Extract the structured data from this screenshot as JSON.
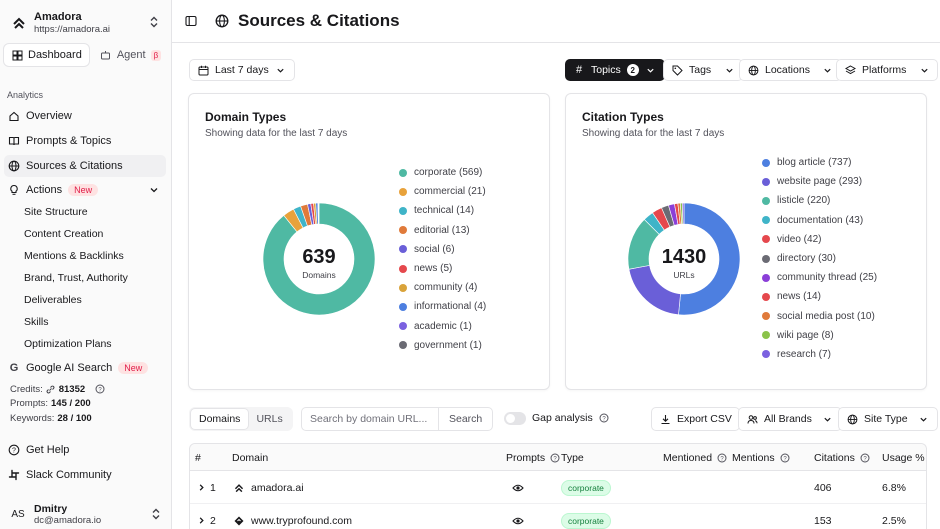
{
  "org": {
    "name": "Amadora",
    "url": "https://amadora.ai"
  },
  "mode_tabs": [
    {
      "label": "Dashboard",
      "active": true
    },
    {
      "label": "Agent",
      "badge": "β"
    }
  ],
  "nav": {
    "section_label": "Analytics",
    "items": [
      {
        "label": "Overview",
        "icon": "home-icon"
      },
      {
        "label": "Prompts & Topics",
        "icon": "book-icon"
      },
      {
        "label": "Sources & Citations",
        "icon": "globe-icon",
        "active": true
      },
      {
        "label": "Actions",
        "icon": "lightbulb-icon",
        "badge": "New"
      }
    ],
    "actions_sub": [
      "Site Structure",
      "Content Creation",
      "Mentions & Backlinks",
      "Brand, Trust, Authority",
      "Deliverables",
      "Skills",
      "Optimization Plans"
    ],
    "google": {
      "label": "Google AI Search",
      "badge": "New"
    }
  },
  "stats": {
    "credits_label": "Credits:",
    "credits_value": "81352",
    "prompts_label": "Prompts:",
    "prompts_value": "145 / 200",
    "keywords_label": "Keywords:",
    "keywords_value": "28 / 100"
  },
  "footer_links": [
    "Get Help",
    "Slack Community"
  ],
  "user": {
    "initials": "AS",
    "name": "Dmitry",
    "email": "dc@amadora.io"
  },
  "header": {
    "title": "Sources & Citations"
  },
  "filters": {
    "date": "Last 7 days",
    "topics": "Topics",
    "topics_count": "2",
    "tags": "Tags",
    "locations": "Locations",
    "platforms": "Platforms"
  },
  "domain_types": {
    "title": "Domain Types",
    "subtitle": "Showing data for the last 7 days",
    "total": "639",
    "total_label": "Domains",
    "items": [
      {
        "label": "corporate (569)",
        "value": 569,
        "color": "#4fb9a3"
      },
      {
        "label": "commercial (21)",
        "value": 21,
        "color": "#e8a23b"
      },
      {
        "label": "technical (14)",
        "value": 14,
        "color": "#3fb4c8"
      },
      {
        "label": "editorial (13)",
        "value": 13,
        "color": "#e07a3a"
      },
      {
        "label": "social (6)",
        "value": 6,
        "color": "#6a5fd8"
      },
      {
        "label": "news (5)",
        "value": 5,
        "color": "#e5484d"
      },
      {
        "label": "community (4)",
        "value": 4,
        "color": "#d9a33a"
      },
      {
        "label": "informational (4)",
        "value": 4,
        "color": "#4d7fe0"
      },
      {
        "label": "academic (1)",
        "value": 1,
        "color": "#7b61e0"
      },
      {
        "label": "government (1)",
        "value": 1,
        "color": "#6b6b74"
      }
    ]
  },
  "citation_types": {
    "title": "Citation Types",
    "subtitle": "Showing data for the last 7 days",
    "total": "1430",
    "total_label": "URLs",
    "items": [
      {
        "label": "blog article (737)",
        "value": 737,
        "color": "#4d7fe0"
      },
      {
        "label": "website page (293)",
        "value": 293,
        "color": "#6a5fd8"
      },
      {
        "label": "listicle (220)",
        "value": 220,
        "color": "#4fb9a3"
      },
      {
        "label": "documentation (43)",
        "value": 43,
        "color": "#3fb4c8"
      },
      {
        "label": "video (42)",
        "value": 42,
        "color": "#e5484d"
      },
      {
        "label": "directory (30)",
        "value": 30,
        "color": "#6b6b74"
      },
      {
        "label": "community thread (25)",
        "value": 25,
        "color": "#8b3fd8"
      },
      {
        "label": "news (14)",
        "value": 14,
        "color": "#e5484d"
      },
      {
        "label": "social media post (10)",
        "value": 10,
        "color": "#e07a3a"
      },
      {
        "label": "wiki page (8)",
        "value": 8,
        "color": "#8bc34a"
      },
      {
        "label": "research (7)",
        "value": 7,
        "color": "#7b61e0"
      }
    ]
  },
  "table_controls": {
    "tabs": [
      "Domains",
      "URLs"
    ],
    "search_placeholder": "Search by domain URL...",
    "search_button": "Search",
    "gap_label": "Gap analysis",
    "export": "Export CSV",
    "brands": "All Brands",
    "site_type": "Site Type"
  },
  "table": {
    "headers": [
      "#",
      "Domain",
      "Prompts",
      "Type",
      "Mentioned",
      "Mentions",
      "Citations",
      "Usage %"
    ],
    "rows": [
      {
        "rank": "1",
        "domain": "amadora.ai",
        "type": "corporate",
        "citations": "406",
        "usage": "6.8%"
      },
      {
        "rank": "2",
        "domain": "www.tryprofound.com",
        "type": "corporate",
        "citations": "153",
        "usage": "2.5%"
      }
    ]
  }
}
